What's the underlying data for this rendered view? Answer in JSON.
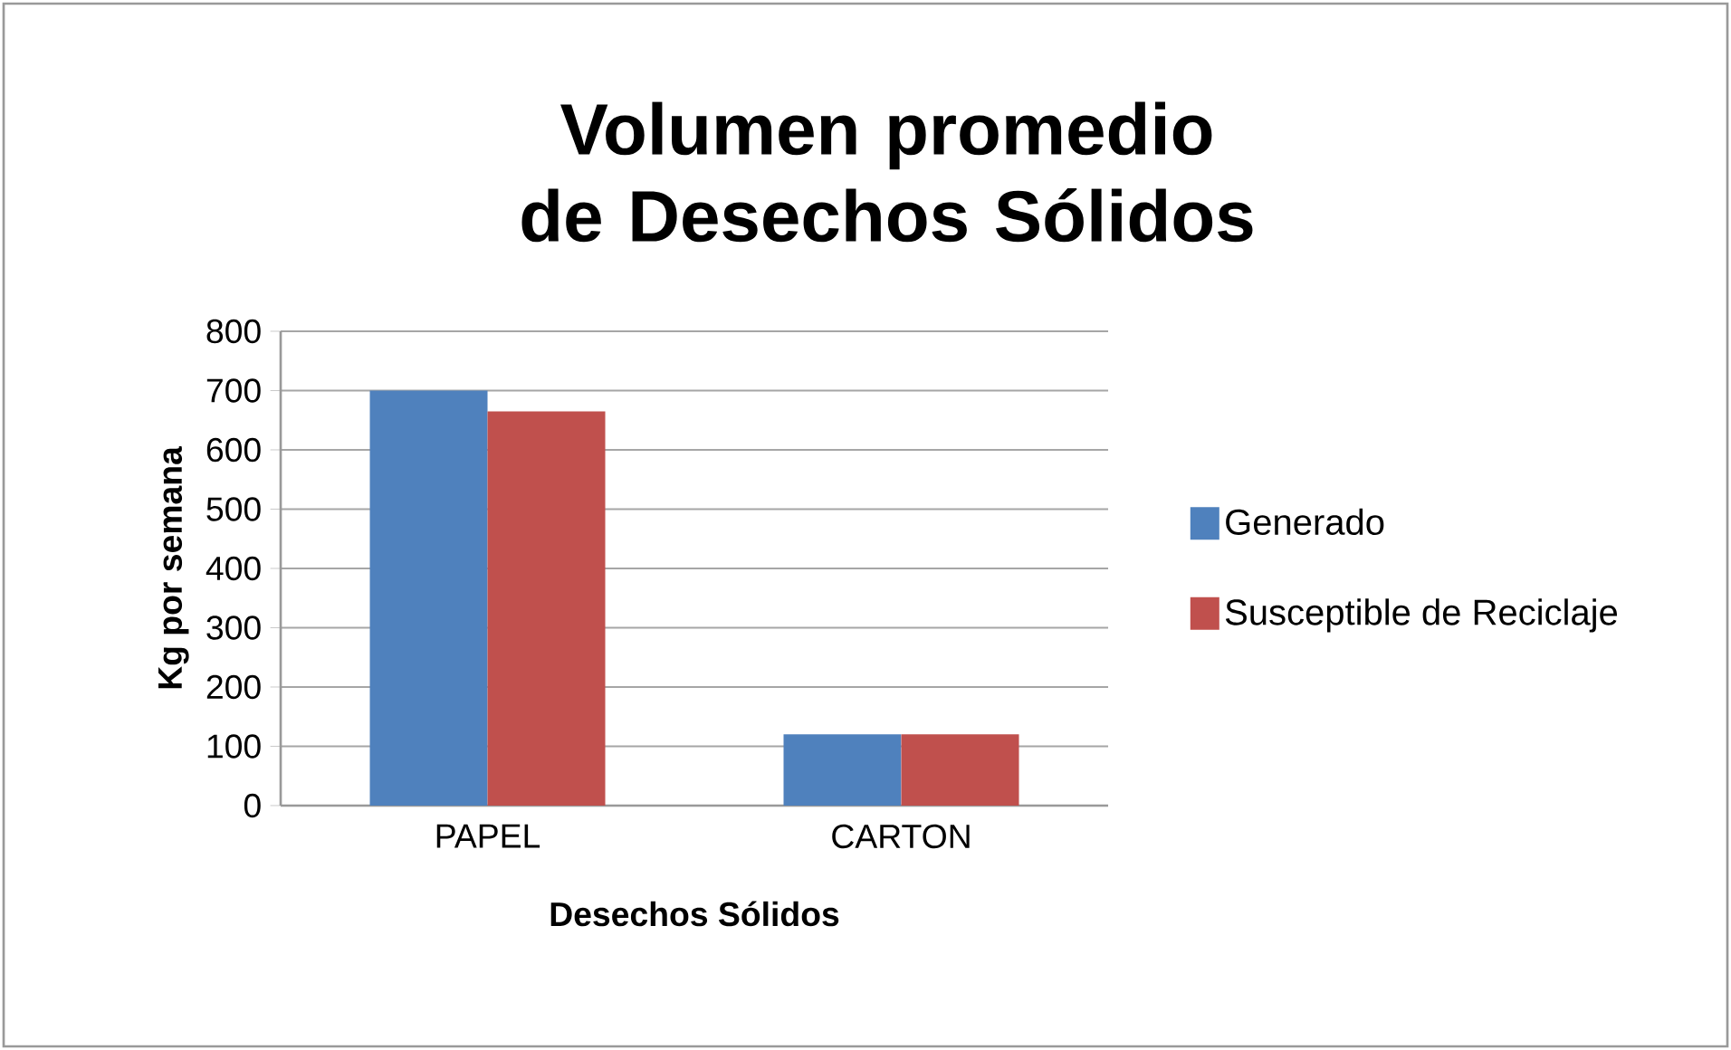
{
  "chart_data": {
    "type": "bar",
    "title": "Volumen promedio de Desechos Sólidos",
    "xlabel": "Desechos Sólidos",
    "ylabel": "Kg por semana",
    "categories": [
      "PAPEL",
      "CARTON"
    ],
    "series": [
      {
        "name": "Generado",
        "color": "#4f81bd",
        "values": [
          700,
          120
        ]
      },
      {
        "name": "Susceptible de Reciclaje",
        "color": "#c0504d",
        "values": [
          665,
          120
        ]
      }
    ],
    "ylim": [
      0,
      800
    ],
    "yticks": [
      0,
      100,
      200,
      300,
      400,
      500,
      600,
      700,
      800
    ],
    "grid": "y",
    "legend": "right"
  }
}
